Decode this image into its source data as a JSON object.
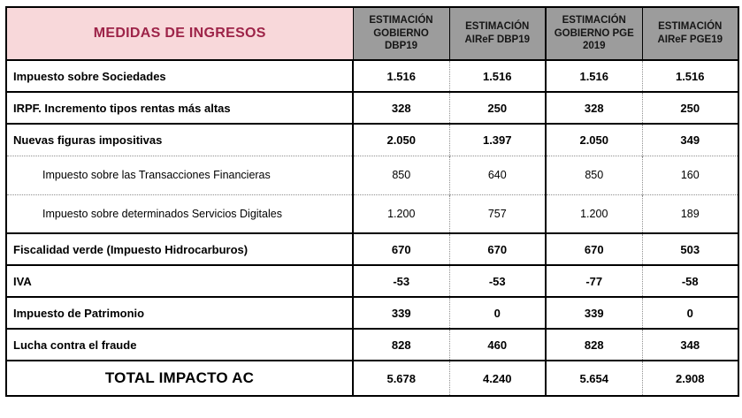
{
  "chart_data": {
    "type": "table",
    "title": "MEDIDAS DE INGRESOS",
    "columns": [
      "ESTIMACIÓN GOBIERNO DBP19",
      "ESTIMACIÓN AIReF DBP19",
      "ESTIMACIÓN GOBIERNO PGE 2019",
      "ESTIMACIÓN AIReF PGE19"
    ],
    "rows": [
      {
        "label": "Impuesto sobre Sociedades",
        "level": "main",
        "values": [
          "1.516",
          "1.516",
          "1.516",
          "1.516"
        ]
      },
      {
        "label": "IRPF. Incremento tipos rentas más altas",
        "level": "main",
        "values": [
          "328",
          "250",
          "328",
          "250"
        ]
      },
      {
        "label": "Nuevas figuras impositivas",
        "level": "main",
        "values": [
          "2.050",
          "1.397",
          "2.050",
          "349"
        ]
      },
      {
        "label": "Impuesto sobre las Transacciones Financieras",
        "level": "sub",
        "values": [
          "850",
          "640",
          "850",
          "160"
        ]
      },
      {
        "label": "Impuesto sobre determinados Servicios Digitales",
        "level": "sub",
        "values": [
          "1.200",
          "757",
          "1.200",
          "189"
        ]
      },
      {
        "label": "Fiscalidad verde (Impuesto Hidrocarburos)",
        "level": "main",
        "values": [
          "670",
          "670",
          "670",
          "503"
        ]
      },
      {
        "label": "IVA",
        "level": "main",
        "values": [
          "-53",
          "-53",
          "-77",
          "-58"
        ]
      },
      {
        "label": "Impuesto de Patrimonio",
        "level": "main",
        "values": [
          "339",
          "0",
          "339",
          "0"
        ]
      },
      {
        "label": "Lucha contra el fraude",
        "level": "main",
        "values": [
          "828",
          "460",
          "828",
          "348"
        ]
      },
      {
        "label": "TOTAL IMPACTO AC",
        "level": "total",
        "values": [
          "5.678",
          "4.240",
          "5.654",
          "2.908"
        ]
      }
    ]
  },
  "colors": {
    "title_cell_background": "#f8d8da",
    "title_text": "#9d2348",
    "column_header_background": "#9c9c9c",
    "column_header_text": "#161616",
    "border_solid": "#000000",
    "border_dotted": "#8f8f8f",
    "page_background": "#ffffff"
  }
}
